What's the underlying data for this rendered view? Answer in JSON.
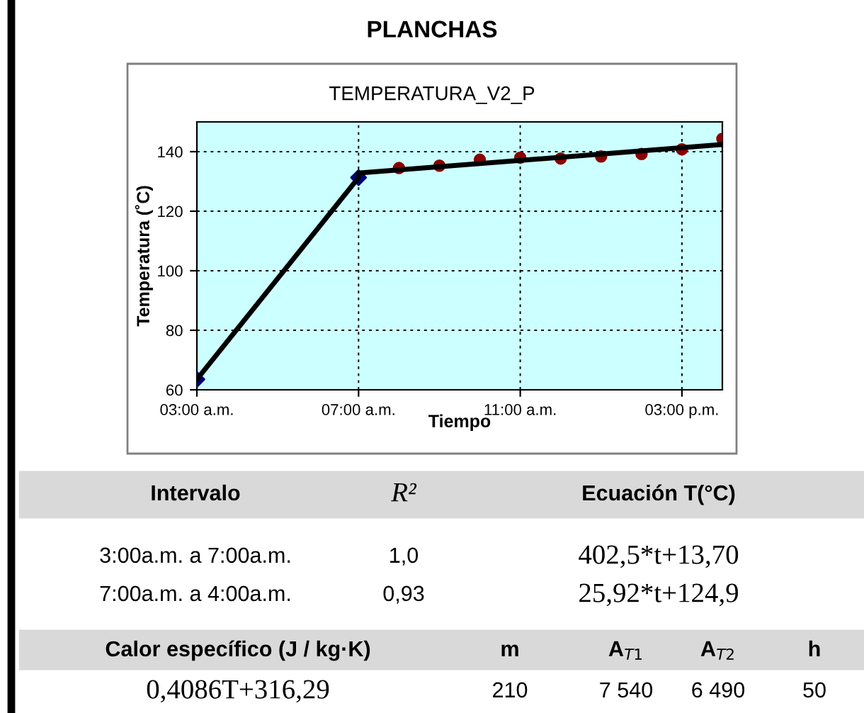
{
  "chart_data": {
    "type": "scatter",
    "title": "PLANCHAS",
    "subtitle": "TEMPERATURA_V2_P",
    "xlabel": "Tiempo",
    "ylabel": "Temperatura (˚C)",
    "xlim": [
      3,
      16
    ],
    "xticks": [
      {
        "value": 3,
        "label": "03:00 a.m."
      },
      {
        "value": 7,
        "label": "07:00 a.m."
      },
      {
        "value": 11,
        "label": "11:00 a.m."
      },
      {
        "value": 15,
        "label": "03:00 p.m."
      }
    ],
    "ylim": [
      60,
      150
    ],
    "yticks": [
      60,
      80,
      100,
      120,
      140
    ],
    "grid": true,
    "legend": false,
    "series": [
      {
        "color": "#000080",
        "marker": "diamond",
        "x": [
          3,
          7
        ],
        "values": [
          63.5,
          131.3
        ]
      },
      {
        "color": "#8b0000",
        "marker": "circle",
        "x": [
          8,
          9,
          10,
          11,
          12,
          13,
          14,
          15,
          16
        ],
        "values": [
          134.5,
          135.3,
          137.3,
          138.0,
          137.7,
          138.4,
          139.2,
          140.8,
          144.3
        ]
      },
      {
        "type": "line",
        "color": "#000000",
        "marker": "none",
        "x": [
          3,
          7
        ],
        "values": [
          63.5,
          131.3
        ]
      },
      {
        "type": "line",
        "color": "#000000",
        "marker": "none",
        "x": [
          7,
          16
        ],
        "values": [
          132.8,
          142.4
        ]
      }
    ],
    "annotations": [
      "Intervalo",
      "R²",
      "Ecuación T(°C)",
      "3:00a.m. a 7:00a.m.",
      "1,0",
      "402,5*t+13,70",
      "7:00a.m. a 4:00a.m.",
      "0,93",
      "25,92*t+124,9",
      "Calor específico (J / kg·K)",
      "m",
      "A$_{T1}$",
      "A$_{T2}$",
      "h",
      "0,4086T+316,29",
      "210",
      "7 540",
      "6 490",
      "50"
    ]
  }
}
